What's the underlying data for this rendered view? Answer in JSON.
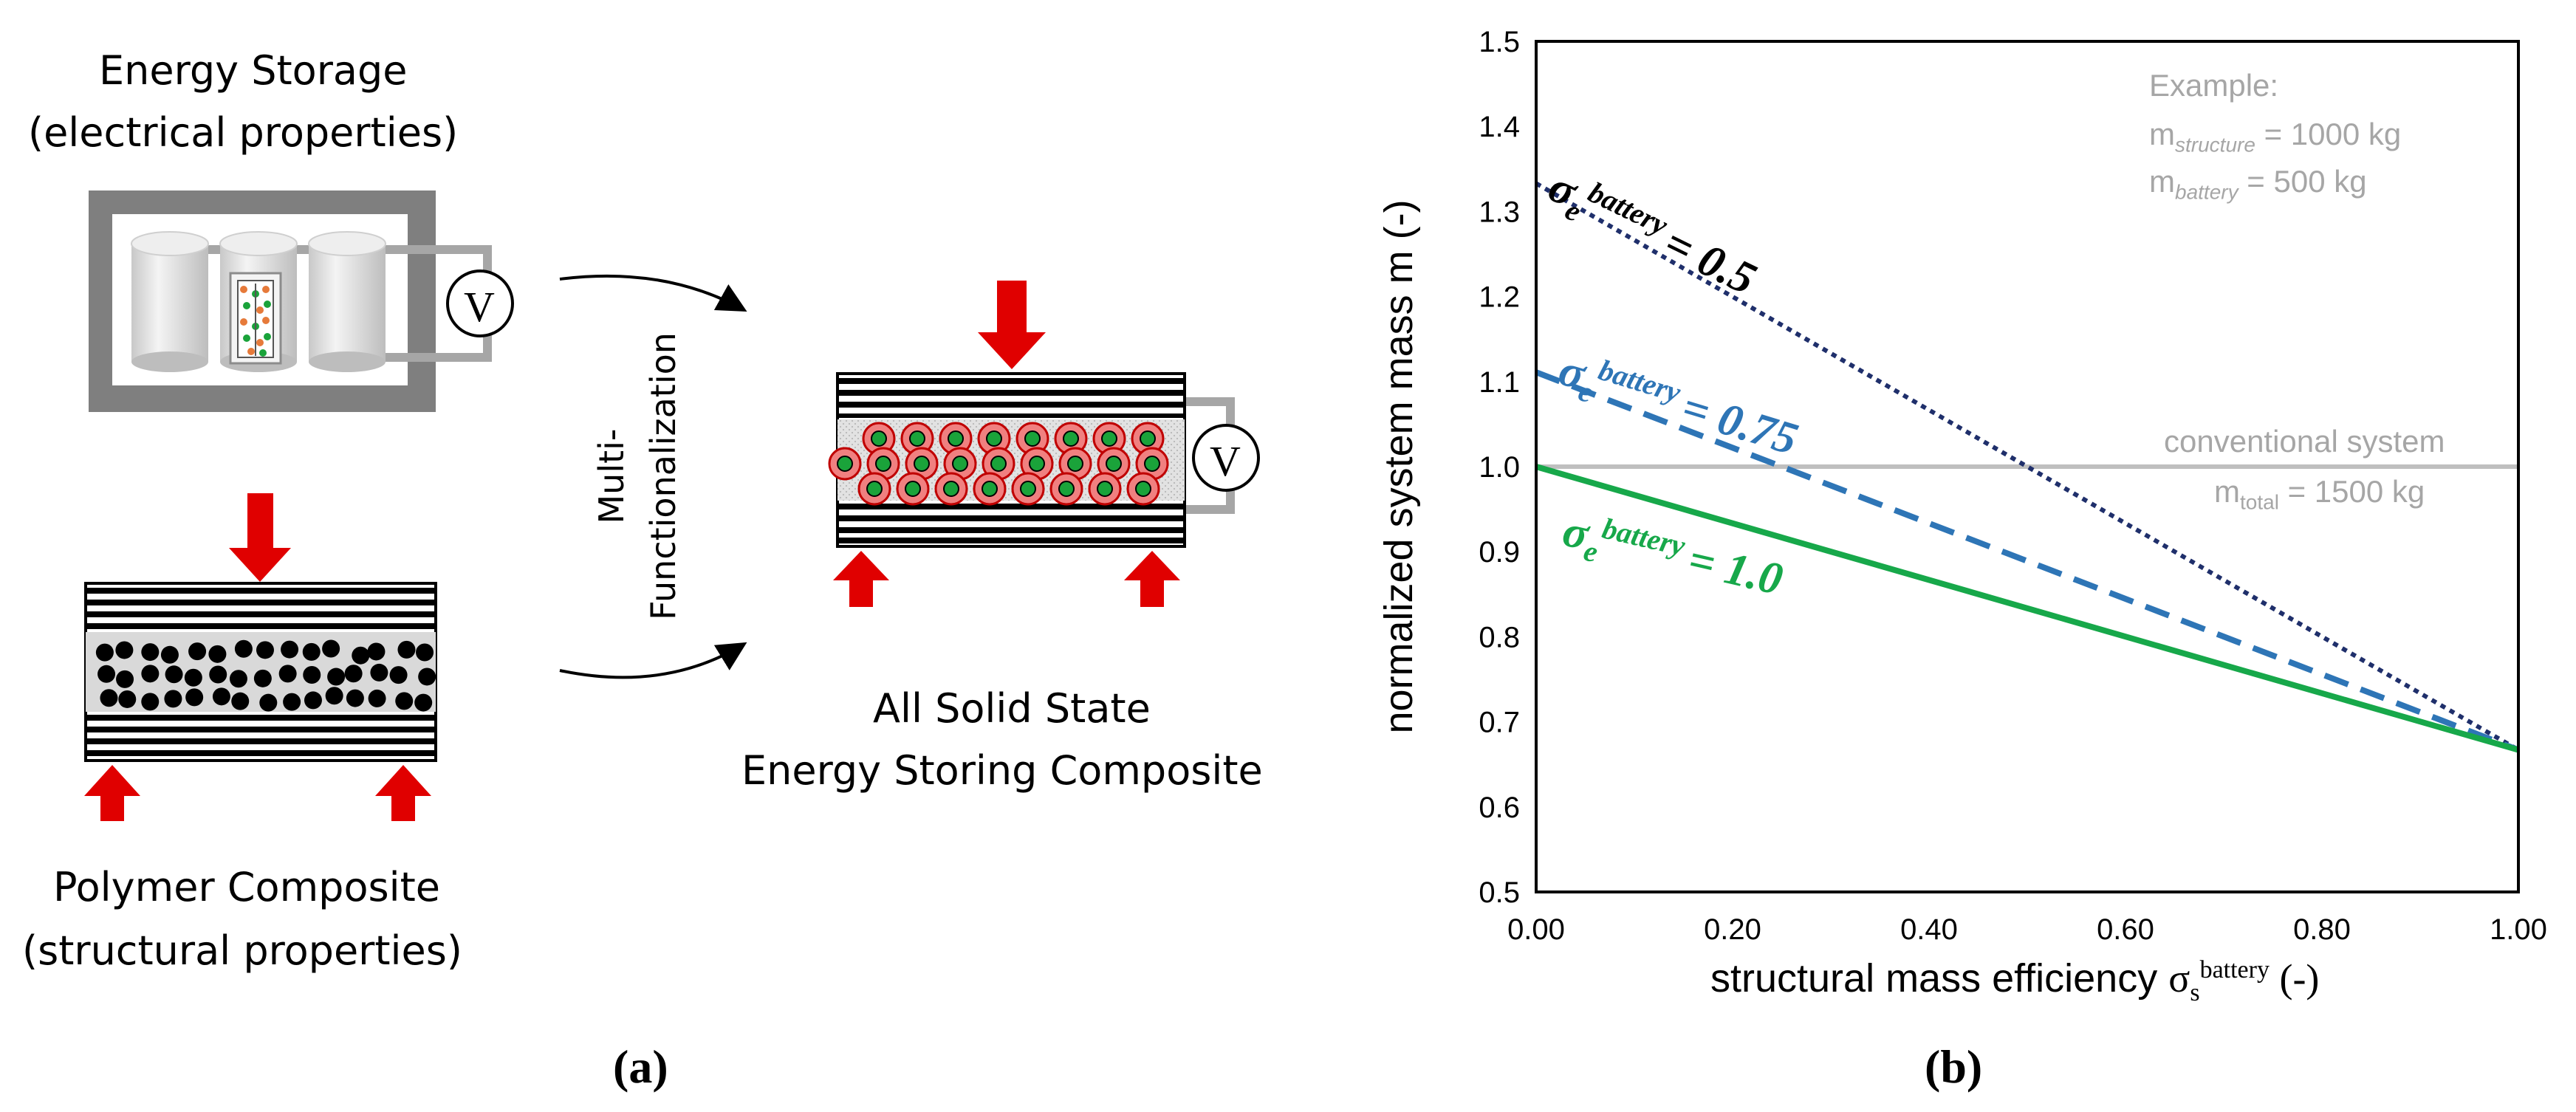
{
  "panel_a": {
    "energy_storage": {
      "title": "Energy Storage",
      "subtitle": "(electrical properties)"
    },
    "polymer_composite": {
      "title": "Polymer Composite",
      "subtitle": "(structural properties)"
    },
    "process": {
      "line1": "Multi-",
      "line2": "Functionalization"
    },
    "result": {
      "line1": "All Solid State",
      "line2": "Energy Storing Composite"
    },
    "voltmeter_symbol": "V",
    "panel_label": "(a)",
    "colors": {
      "load_arrow": "#e00000",
      "particle_shell": "#f08080",
      "particle_core": "#1aa33a",
      "frame": "#7f7f7f"
    }
  },
  "panel_b": {
    "panel_label": "(b)",
    "example": {
      "heading": "Example:",
      "line1_prefix": "m",
      "line1_sub": "structure",
      "line1_value": " = 1000 kg",
      "line2_prefix": "m",
      "line2_sub": "battery",
      "line2_value": " = 500 kg"
    },
    "conventional": {
      "line1": "conventional system",
      "line2_prefix": "m",
      "line2_sub": "total",
      "line2_value": " = 1500 kg"
    },
    "curve_labels": [
      {
        "sym": "σ",
        "sub": "e",
        "sup": "battery",
        "value": "= 0.5",
        "color": "#000000"
      },
      {
        "sym": "σ",
        "sub": "e",
        "sup": "battery",
        "value": "= 0.75",
        "color": "#2e75b6"
      },
      {
        "sym": "σ",
        "sub": "e",
        "sup": "battery",
        "value": "= 1.0",
        "color": "#17a84a"
      }
    ]
  },
  "chart_data": {
    "type": "line",
    "title": "",
    "ylabel": "normalized system mass m (-)",
    "xlabel_prefix": "structural mass efficiency ",
    "xlabel_sym": "σ",
    "xlabel_sub": "s",
    "xlabel_sup": "battery",
    "xlabel_suffix": " (-)",
    "xlim": [
      0,
      1
    ],
    "ylim": [
      0.5,
      1.5
    ],
    "x_ticks": [
      "0.00",
      "0.20",
      "0.40",
      "0.60",
      "0.80",
      "1.00"
    ],
    "y_ticks": [
      "0.5",
      "0.6",
      "0.7",
      "0.8",
      "0.9",
      "1.0",
      "1.1",
      "1.2",
      "1.3",
      "1.4",
      "1.5"
    ],
    "grid": false,
    "series": [
      {
        "sigma_e": 0.5,
        "x": [
          0,
          1
        ],
        "y": [
          1.333,
          0.667
        ],
        "color": "#1f2f6b",
        "style": "dotted"
      },
      {
        "sigma_e": 0.75,
        "x": [
          0,
          1
        ],
        "y": [
          1.111,
          0.667
        ],
        "color": "#2e75b6",
        "style": "dashed"
      },
      {
        "sigma_e": 1.0,
        "x": [
          0,
          1
        ],
        "y": [
          1.0,
          0.667
        ],
        "color": "#17a84a",
        "style": "solid"
      }
    ],
    "reference_line": {
      "y": 1.0,
      "color": "#bfbfbf"
    }
  }
}
